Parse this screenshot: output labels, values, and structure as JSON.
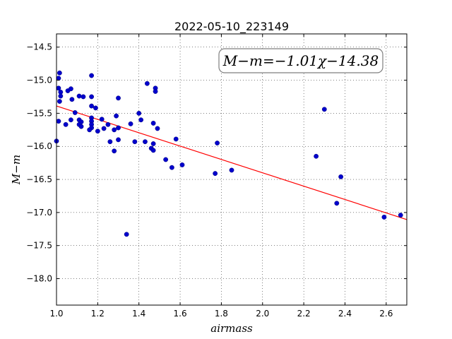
{
  "chart_data": {
    "type": "scatter",
    "title": "2022-05-10_223149",
    "xlabel": "airmass",
    "ylabel": "M−m",
    "xlim": [
      1.0,
      2.7
    ],
    "ylim": [
      -18.4,
      -14.3
    ],
    "y_inverted": true,
    "grid": true,
    "x_ticks": [
      1.0,
      1.2,
      1.4,
      1.6,
      1.8,
      2.0,
      2.2,
      2.4,
      2.6
    ],
    "x_tick_labels": [
      "1.0",
      "1.2",
      "1.4",
      "1.6",
      "1.8",
      "2.0",
      "2.2",
      "2.4",
      "2.6"
    ],
    "y_ticks": [
      -14.5,
      -15.0,
      -15.5,
      -16.0,
      -16.5,
      -17.0,
      -17.5,
      -18.0
    ],
    "y_tick_labels": [
      "−14.5",
      "−15.0",
      "−15.5",
      "−16.0",
      "−16.5",
      "−17.0",
      "−17.5",
      "−18.0"
    ],
    "annotation": "M−m=−1.01χ−14.38",
    "fit": {
      "slope": -1.01,
      "intercept": -14.38,
      "color": "#ff0000"
    },
    "marker_color": "#0000cc",
    "points": [
      {
        "x": 1.0,
        "y": -15.92
      },
      {
        "x": 1.01,
        "y": -14.97
      },
      {
        "x": 1.015,
        "y": -14.89
      },
      {
        "x": 1.01,
        "y": -15.12
      },
      {
        "x": 1.02,
        "y": -15.18
      },
      {
        "x": 1.02,
        "y": -15.24
      },
      {
        "x": 1.015,
        "y": -15.32
      },
      {
        "x": 1.01,
        "y": -15.62
      },
      {
        "x": 1.045,
        "y": -15.67
      },
      {
        "x": 1.055,
        "y": -15.16
      },
      {
        "x": 1.07,
        "y": -15.13
      },
      {
        "x": 1.075,
        "y": -15.29
      },
      {
        "x": 1.07,
        "y": -15.6
      },
      {
        "x": 1.09,
        "y": -15.49
      },
      {
        "x": 1.11,
        "y": -15.24
      },
      {
        "x": 1.13,
        "y": -15.25
      },
      {
        "x": 1.11,
        "y": -15.6
      },
      {
        "x": 1.12,
        "y": -15.63
      },
      {
        "x": 1.11,
        "y": -15.67
      },
      {
        "x": 1.12,
        "y": -15.7
      },
      {
        "x": 1.17,
        "y": -14.93
      },
      {
        "x": 1.17,
        "y": -15.25
      },
      {
        "x": 1.17,
        "y": -15.39
      },
      {
        "x": 1.19,
        "y": -15.42
      },
      {
        "x": 1.17,
        "y": -15.57
      },
      {
        "x": 1.17,
        "y": -15.62
      },
      {
        "x": 1.17,
        "y": -15.67
      },
      {
        "x": 1.17,
        "y": -15.72
      },
      {
        "x": 1.16,
        "y": -15.75
      },
      {
        "x": 1.2,
        "y": -15.77
      },
      {
        "x": 1.22,
        "y": -15.59
      },
      {
        "x": 1.23,
        "y": -15.73
      },
      {
        "x": 1.25,
        "y": -15.67
      },
      {
        "x": 1.26,
        "y": -15.93
      },
      {
        "x": 1.28,
        "y": -15.75
      },
      {
        "x": 1.29,
        "y": -15.54
      },
      {
        "x": 1.3,
        "y": -15.27
      },
      {
        "x": 1.3,
        "y": -15.72
      },
      {
        "x": 1.3,
        "y": -15.9
      },
      {
        "x": 1.28,
        "y": -16.07
      },
      {
        "x": 1.34,
        "y": -17.33
      },
      {
        "x": 1.36,
        "y": -15.66
      },
      {
        "x": 1.38,
        "y": -15.93
      },
      {
        "x": 1.4,
        "y": -15.5
      },
      {
        "x": 1.41,
        "y": -15.6
      },
      {
        "x": 1.43,
        "y": -15.93
      },
      {
        "x": 1.44,
        "y": -15.05
      },
      {
        "x": 1.46,
        "y": -16.03
      },
      {
        "x": 1.47,
        "y": -15.65
      },
      {
        "x": 1.48,
        "y": -15.12
      },
      {
        "x": 1.48,
        "y": -15.17
      },
      {
        "x": 1.47,
        "y": -16.06
      },
      {
        "x": 1.47,
        "y": -15.96
      },
      {
        "x": 1.49,
        "y": -15.73
      },
      {
        "x": 1.53,
        "y": -16.2
      },
      {
        "x": 1.56,
        "y": -16.32
      },
      {
        "x": 1.58,
        "y": -15.89
      },
      {
        "x": 1.61,
        "y": -16.28
      },
      {
        "x": 1.77,
        "y": -16.41
      },
      {
        "x": 1.78,
        "y": -15.95
      },
      {
        "x": 1.85,
        "y": -16.36
      },
      {
        "x": 2.26,
        "y": -16.15
      },
      {
        "x": 2.3,
        "y": -15.44
      },
      {
        "x": 2.36,
        "y": -16.86
      },
      {
        "x": 2.38,
        "y": -16.46
      },
      {
        "x": 2.59,
        "y": -17.07
      },
      {
        "x": 2.67,
        "y": -17.04
      }
    ]
  }
}
